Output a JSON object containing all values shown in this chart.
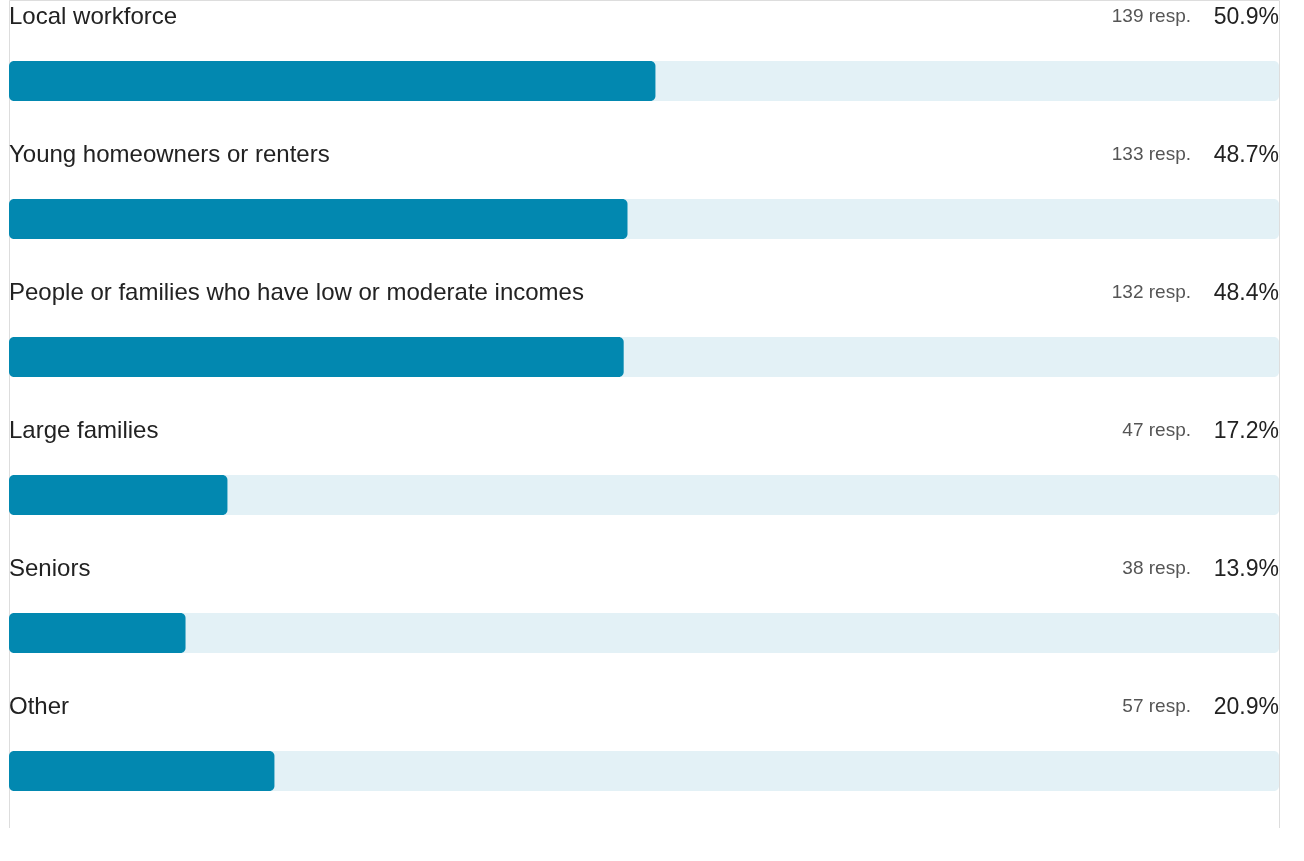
{
  "chart_data": {
    "type": "bar",
    "orientation": "horizontal",
    "categories": [
      "Local workforce",
      "Young homeowners or renters",
      "People or families who have low or moderate incomes",
      "Large families",
      "Seniors",
      "Other"
    ],
    "values": [
      50.9,
      48.7,
      48.4,
      17.2,
      13.9,
      20.9
    ],
    "value_labels": [
      "50.9%",
      "48.7%",
      "48.4%",
      "17.2%",
      "13.9%",
      "20.9%"
    ],
    "annotations": [
      "139 resp.",
      "133 resp.",
      "132 resp.",
      "47 resp.",
      "38 resp.",
      "57 resp."
    ],
    "color": "#0288b0",
    "xlim": [
      0,
      100
    ],
    "tick_labels": "y"
  }
}
